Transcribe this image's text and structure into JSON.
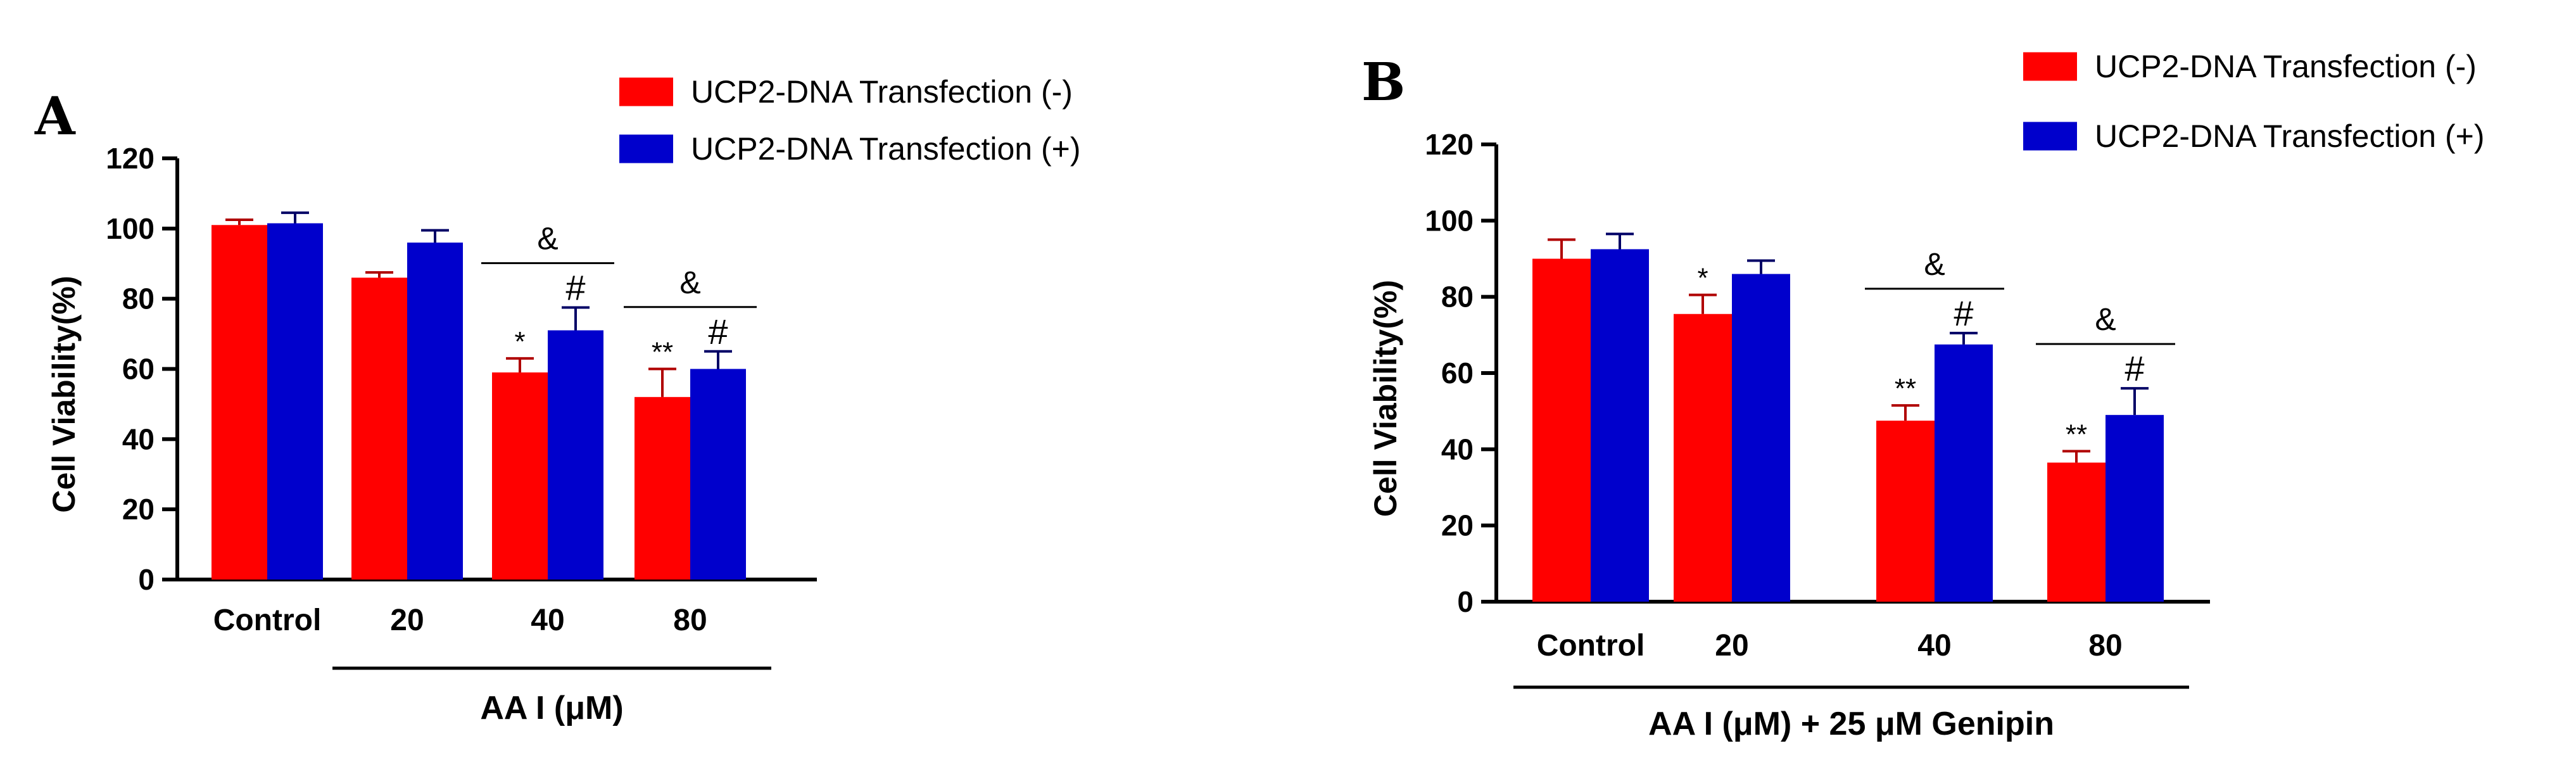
{
  "chart_data": [
    {
      "type": "bar",
      "panel": "A",
      "categories": [
        "Control",
        "20",
        "40",
        "80"
      ],
      "series": [
        {
          "name": "UCP2-DNA Transfection (-)",
          "color": "#ff0000",
          "values": [
            101,
            86,
            59,
            52
          ],
          "errors": [
            1.5,
            1.5,
            4,
            8
          ],
          "marks": [
            "",
            "",
            "*",
            "**"
          ]
        },
        {
          "name": "UCP2-DNA Transfection (+)",
          "color": "#0000cc",
          "values": [
            101.5,
            96,
            71,
            60
          ],
          "errors": [
            3,
            3.5,
            6.5,
            5
          ],
          "marks": [
            "",
            "",
            "#",
            "#"
          ]
        }
      ],
      "brackets": [
        {
          "category_index": 2,
          "label": "&"
        },
        {
          "category_index": 3,
          "label": "&"
        }
      ],
      "ylabel": "Cell Viability(%)",
      "xlabel": "AA I (μM)",
      "xlabel_span": [
        1,
        3
      ],
      "ylim": [
        0,
        120
      ],
      "yticks": [
        0,
        20,
        40,
        60,
        80,
        100,
        120
      ],
      "legend": "top-right"
    },
    {
      "type": "bar",
      "panel": "B",
      "categories": [
        "Control",
        "20",
        "40",
        "80"
      ],
      "series": [
        {
          "name": "UCP2-DNA Transfection (-)",
          "color": "#ff0000",
          "values": [
            90,
            75.5,
            47.5,
            36.5
          ],
          "errors": [
            5,
            5,
            4,
            3
          ],
          "marks": [
            "",
            "*",
            "**",
            "**"
          ]
        },
        {
          "name": "UCP2-DNA Transfection (+)",
          "color": "#0000cc",
          "values": [
            92.5,
            86,
            67.5,
            49
          ],
          "errors": [
            4,
            3.5,
            3,
            7
          ],
          "marks": [
            "",
            "",
            "#",
            "#"
          ]
        }
      ],
      "brackets": [
        {
          "category_index": 2,
          "label": "&"
        },
        {
          "category_index": 3,
          "label": "&"
        }
      ],
      "ylabel": "Cell Viability(%)",
      "xlabel": "AA I (μM) + 25 μM Genipin",
      "xlabel_span": [
        0,
        3
      ],
      "ylim": [
        0,
        120
      ],
      "yticks": [
        0,
        20,
        40,
        60,
        80,
        100,
        120
      ],
      "legend": "top-right"
    }
  ]
}
